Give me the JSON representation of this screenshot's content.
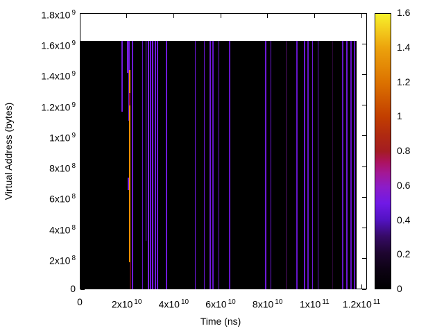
{
  "chart_data": {
    "type": "heatmap",
    "title": "",
    "xlabel": "Time (ns)",
    "ylabel": "Virtual Address (bytes)",
    "xlim": [
      0,
      122400000000.0
    ],
    "ylim": [
      0,
      1800000000.0
    ],
    "grid": false,
    "plot_background": "#000000",
    "page_background": "#ffffff",
    "data_extent": {
      "t_max": 118000000000.0,
      "addr_max": 1620000000.0
    },
    "x_ticks": [
      {
        "v": 0,
        "m": "0",
        "e": ""
      },
      {
        "v": 20000000000.0,
        "m": "2x10",
        "e": "10"
      },
      {
        "v": 40000000000.0,
        "m": "4x10",
        "e": "10"
      },
      {
        "v": 60000000000.0,
        "m": "6x10",
        "e": "10"
      },
      {
        "v": 80000000000.0,
        "m": "8x10",
        "e": "10"
      },
      {
        "v": 100000000000.0,
        "m": "1x10",
        "e": "11"
      },
      {
        "v": 120000000000.0,
        "m": "1.2x10",
        "e": "11"
      }
    ],
    "y_ticks": [
      {
        "v": 0,
        "m": "0",
        "e": ""
      },
      {
        "v": 200000000.0,
        "m": "2x10",
        "e": "8"
      },
      {
        "v": 400000000.0,
        "m": "4x10",
        "e": "8"
      },
      {
        "v": 600000000.0,
        "m": "6x10",
        "e": "8"
      },
      {
        "v": 800000000.0,
        "m": "8x10",
        "e": "8"
      },
      {
        "v": 1000000000.0,
        "m": "1x10",
        "e": "9"
      },
      {
        "v": 1200000000.0,
        "m": "1.2x10",
        "e": "9"
      },
      {
        "v": 1400000000.0,
        "m": "1.4x10",
        "e": "9"
      },
      {
        "v": 1600000000.0,
        "m": "1.6x10",
        "e": "9"
      },
      {
        "v": 1800000000.0,
        "m": "1.8x10",
        "e": "9"
      }
    ],
    "colorbar": {
      "min": 0,
      "max": 1.6,
      "tick_labels": [
        "0",
        "0.2",
        "0.4",
        "0.6",
        "0.8",
        "1",
        "1.2",
        "1.4",
        "1.6"
      ],
      "tick_values": [
        0,
        0.2,
        0.4,
        0.6,
        0.8,
        1.0,
        1.2,
        1.4,
        1.6
      ],
      "gradient_stops": [
        {
          "p": 0,
          "c": "#000000"
        },
        {
          "p": 0.07,
          "c": "#0d0214"
        },
        {
          "p": 0.13,
          "c": "#1e0530"
        },
        {
          "p": 0.19,
          "c": "#360a66"
        },
        {
          "p": 0.25,
          "c": "#5212c2"
        },
        {
          "p": 0.31,
          "c": "#7019e6"
        },
        {
          "p": 0.37,
          "c": "#8c1cc8"
        },
        {
          "p": 0.42,
          "c": "#a31896"
        },
        {
          "p": 0.46,
          "c": "#ac1260"
        },
        {
          "p": 0.5,
          "c": "#a41c22"
        },
        {
          "p": 0.56,
          "c": "#b02a10"
        },
        {
          "p": 0.625,
          "c": "#c23e00"
        },
        {
          "p": 0.75,
          "c": "#dc7200"
        },
        {
          "p": 0.875,
          "c": "#eca20c"
        },
        {
          "p": 0.94,
          "c": "#f3cb1d"
        },
        {
          "p": 1,
          "c": "#f7f22b"
        }
      ]
    },
    "events": [
      {
        "t": 18000000000.0,
        "a0": 1160000000.0,
        "a1": 1620000000.0,
        "w": 1.5,
        "v": 0.45,
        "color": "#6e19d8"
      },
      {
        "t": 20800000000.0,
        "a0": 1410000000.0,
        "a1": 1620000000.0,
        "w": 4,
        "v": 0.5,
        "color": "#7a1fe0"
      },
      {
        "t": 21000000000.0,
        "a0": 1100000000.0,
        "a1": 1620000000.0,
        "w": 2,
        "v": 0.45,
        "color": "#6e19d8"
      },
      {
        "t": 21000000000.0,
        "a0": 647000000.0,
        "a1": 728000000.0,
        "w": 3.5,
        "v": 0.5,
        "color": "#7a1fe0"
      },
      {
        "t": 21400000000.0,
        "a0": 176000000.0,
        "a1": 1430000000.0,
        "w": 2,
        "v": 1.35,
        "color": "#f09000"
      },
      {
        "t": 21400000000.0,
        "a0": 1200000000.0,
        "a1": 1280000000.0,
        "w": 2,
        "v": 0.8,
        "color": "#a81a22"
      },
      {
        "t": 21600000000.0,
        "a0": 0,
        "a1": 176000000.0,
        "w": 1.5,
        "v": 0.75,
        "color": "#5a0d14"
      },
      {
        "t": 22500000000.0,
        "a0": 0,
        "a1": 1620000000.0,
        "w": 1.5,
        "v": 0.45,
        "color": "#6e19d8"
      },
      {
        "t": 26800000000.0,
        "a0": 0,
        "a1": 1620000000.0,
        "w": 1.5,
        "v": 0.4,
        "color": "#6414c8"
      },
      {
        "t": 28200000000.0,
        "a0": 317000000.0,
        "a1": 1620000000.0,
        "w": 1.5,
        "v": 0.45,
        "color": "#6e19d8"
      },
      {
        "t": 29200000000.0,
        "a0": 0,
        "a1": 1620000000.0,
        "w": 2.5,
        "v": 0.5,
        "color": "#7a1fe0"
      },
      {
        "t": 30200000000.0,
        "a0": 0,
        "a1": 1620000000.0,
        "w": 1.5,
        "v": 0.45,
        "color": "#6e19d8"
      },
      {
        "t": 31100000000.0,
        "a0": 0,
        "a1": 1620000000.0,
        "w": 2.5,
        "v": 0.5,
        "color": "#7a1fe0"
      },
      {
        "t": 32200000000.0,
        "a0": 0,
        "a1": 1620000000.0,
        "w": 1.5,
        "v": 0.45,
        "color": "#6e19d8"
      },
      {
        "t": 33000000000.0,
        "a0": 0,
        "a1": 1620000000.0,
        "w": 2,
        "v": 0.45,
        "color": "#6e19d8"
      },
      {
        "t": 36900000000.0,
        "a0": 0,
        "a1": 1620000000.0,
        "w": 1.5,
        "v": 0.45,
        "color": "#6e19d8"
      },
      {
        "t": 49200000000.0,
        "a0": 0,
        "a1": 1620000000.0,
        "w": 1.5,
        "v": 0.4,
        "color": "#6414c8"
      },
      {
        "t": 53100000000.0,
        "a0": 0,
        "a1": 1620000000.0,
        "w": 1.5,
        "v": 0.4,
        "color": "#6414c8"
      },
      {
        "t": 55600000000.0,
        "a0": 0,
        "a1": 1620000000.0,
        "w": 1.5,
        "v": 0.45,
        "color": "#6e19d8"
      },
      {
        "t": 56800000000.0,
        "a0": 0,
        "a1": 1620000000.0,
        "w": 1.5,
        "v": 0.4,
        "color": "#6414c8"
      },
      {
        "t": 59300000000.0,
        "a0": 0,
        "a1": 1620000000.0,
        "w": 1.5,
        "v": 0.45,
        "color": "#6e19d8"
      },
      {
        "t": 63900000000.0,
        "a0": 0,
        "a1": 1620000000.0,
        "w": 1.5,
        "v": 0.4,
        "color": "#6414c8"
      },
      {
        "t": 79200000000.0,
        "a0": 0,
        "a1": 1620000000.0,
        "w": 1.5,
        "v": 0.45,
        "color": "#6e19d8"
      },
      {
        "t": 81500000000.0,
        "a0": 0,
        "a1": 1620000000.0,
        "w": 1.5,
        "v": 0.45,
        "color": "#6e19d8"
      },
      {
        "t": 88100000000.0,
        "a0": 0,
        "a1": 1620000000.0,
        "w": 1.5,
        "v": 0.12,
        "color": "#2c0838"
      },
      {
        "t": 92500000000.0,
        "a0": 0,
        "a1": 1620000000.0,
        "w": 1.5,
        "v": 0.4,
        "color": "#6414c8"
      },
      {
        "t": 95700000000.0,
        "a0": 0,
        "a1": 1620000000.0,
        "w": 1.5,
        "v": 0.45,
        "color": "#6e19d8"
      },
      {
        "t": 97200000000.0,
        "a0": 0,
        "a1": 1620000000.0,
        "w": 1.5,
        "v": 0.4,
        "color": "#6414c8"
      },
      {
        "t": 99100000000.0,
        "a0": 0,
        "a1": 1620000000.0,
        "w": 1.5,
        "v": 0.45,
        "color": "#6e19d8"
      },
      {
        "t": 101600000000.0,
        "a0": 0,
        "a1": 1620000000.0,
        "w": 1.5,
        "v": 0.4,
        "color": "#6414c8"
      },
      {
        "t": 107800000000.0,
        "a0": 0,
        "a1": 1620000000.0,
        "w": 1.5,
        "v": 0.12,
        "color": "#2c0838"
      },
      {
        "t": 112000000000.0,
        "a0": 0,
        "a1": 1620000000.0,
        "w": 1.5,
        "v": 0.4,
        "color": "#6414c8"
      },
      {
        "t": 113800000000.0,
        "a0": 0,
        "a1": 1620000000.0,
        "w": 1.5,
        "v": 0.45,
        "color": "#6e19d8"
      },
      {
        "t": 115600000000.0,
        "a0": 0,
        "a1": 1620000000.0,
        "w": 1.5,
        "v": 0.4,
        "color": "#6414c8"
      },
      {
        "t": 117000000000.0,
        "a0": 0,
        "a1": 1620000000.0,
        "w": 1.5,
        "v": 0.4,
        "color": "#6414c8"
      }
    ]
  }
}
